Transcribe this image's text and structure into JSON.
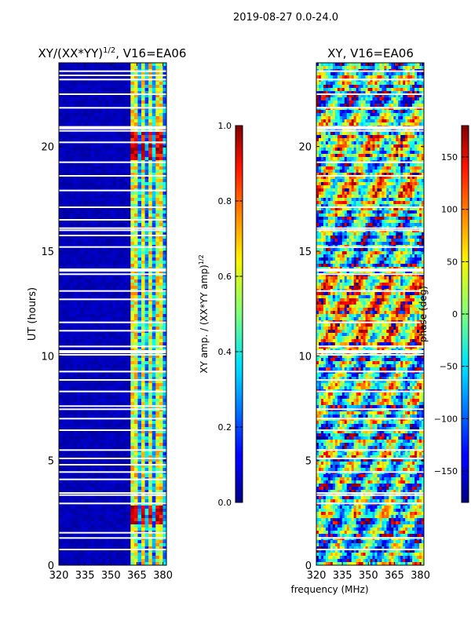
{
  "suptitle": "2019-08-27 0.0-24.0",
  "shared_xlabel": "frequency (MHz)",
  "chart_data": [
    {
      "type": "heatmap",
      "title": "XY/(XX*YY)",
      "title_sup": "1/2",
      "title_suffix": ", V16=EA06",
      "xlabel": "frequency (MHz)",
      "ylabel": "UT (hours)",
      "xlim": [
        320,
        382
      ],
      "ylim": [
        0,
        24
      ],
      "xticks": [
        320,
        335,
        350,
        365,
        380
      ],
      "yticks": [
        0,
        5,
        10,
        15,
        20
      ],
      "colorbar": {
        "label": "XY amp. / (XX*YY amp)",
        "label_sup": "1/2",
        "range": [
          0.0,
          1.0
        ],
        "ticks": [
          "0.0",
          "0.2",
          "0.4",
          "0.6",
          "0.8",
          "1.0"
        ],
        "colormap": "jet"
      },
      "gap_hours": [
        0.75,
        1.3,
        1.55,
        2.95,
        3.35,
        3.45,
        4.1,
        4.45,
        4.8,
        5.1,
        5.5,
        6.45,
        7.0,
        7.45,
        7.6,
        8.3,
        8.85,
        9.25,
        10.05,
        10.2,
        10.45,
        11.2,
        11.6,
        12.7,
        13.1,
        13.9,
        14.1,
        15.2,
        15.75,
        16.0,
        16.1,
        16.5,
        17.1,
        17.9,
        18.6,
        19.25,
        20.2,
        20.75,
        20.9,
        21.85,
        22.5,
        23.2,
        23.4,
        23.6
      ]
    },
    {
      "type": "heatmap",
      "title": "XY, V16=EA06",
      "xlabel": "frequency (MHz)",
      "ylabel": "",
      "xlim": [
        320,
        382
      ],
      "ylim": [
        0,
        24
      ],
      "xticks": [
        320,
        335,
        350,
        365,
        380
      ],
      "yticks": [
        0,
        5,
        10,
        15,
        20
      ],
      "colorbar": {
        "label": "phase (deg)",
        "range": [
          -180,
          180
        ],
        "ticks": [
          "−150",
          "−100",
          "−50",
          "0",
          "50",
          "100",
          "150"
        ],
        "tick_values": [
          -150,
          -100,
          -50,
          0,
          50,
          100,
          150
        ],
        "colormap": "jet"
      },
      "gap_hours": [
        0.75,
        1.3,
        2.95,
        3.35,
        3.45,
        4.45,
        5.1,
        5.5,
        6.45,
        7.0,
        7.45,
        8.3,
        8.85,
        9.25,
        10.05,
        10.2,
        10.45,
        11.6,
        13.1,
        13.9,
        14.1,
        15.2,
        16.0,
        16.1,
        17.1,
        18.6,
        19.25,
        20.75,
        20.9,
        21.85,
        22.5,
        23.2,
        23.6
      ]
    }
  ]
}
